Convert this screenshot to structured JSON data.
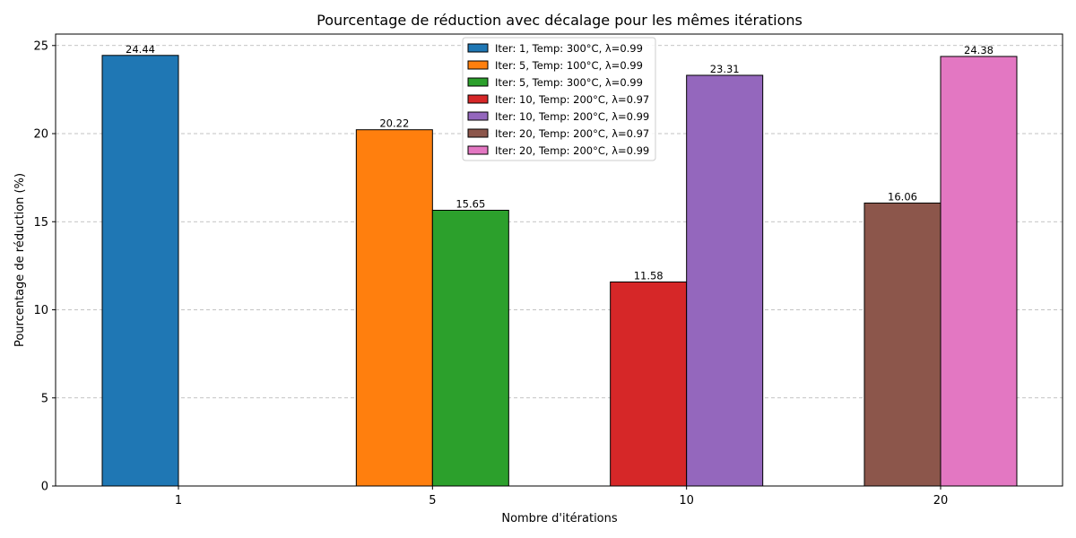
{
  "chart_data": {
    "type": "bar",
    "title": "Pourcentage de réduction avec décalage pour les mêmes itérations",
    "xlabel": "Nombre d'itérations",
    "ylabel": "Pourcentage de réduction (%)",
    "categories": [
      "1",
      "5",
      "10",
      "20"
    ],
    "ylim": [
      0,
      25.65
    ],
    "yticks": [
      0,
      5,
      10,
      15,
      20,
      25
    ],
    "grid": "y-dashed",
    "legend_position": "top-center",
    "series": [
      {
        "name": "Iter: 1, Temp: 300°C, λ=0.99",
        "category": "1",
        "value": 24.44,
        "label": "24.44",
        "color": "#1f77b4"
      },
      {
        "name": "Iter: 5, Temp: 100°C, λ=0.99",
        "category": "5",
        "value": 20.22,
        "label": "20.22",
        "color": "#ff7f0e"
      },
      {
        "name": "Iter: 5, Temp: 300°C, λ=0.99",
        "category": "5",
        "value": 15.65,
        "label": "15.65",
        "color": "#2ca02c"
      },
      {
        "name": "Iter: 10, Temp: 200°C, λ=0.97",
        "category": "10",
        "value": 11.58,
        "label": "11.58",
        "color": "#d62728"
      },
      {
        "name": "Iter: 10, Temp: 200°C, λ=0.99",
        "category": "10",
        "value": 23.31,
        "label": "23.31",
        "color": "#9467bd"
      },
      {
        "name": "Iter: 20, Temp: 200°C, λ=0.97",
        "category": "20",
        "value": 16.06,
        "label": "16.06",
        "color": "#8c564b"
      },
      {
        "name": "Iter: 20, Temp: 200°C, λ=0.99",
        "category": "20",
        "value": 24.38,
        "label": "24.38",
        "color": "#e377c2"
      }
    ]
  }
}
